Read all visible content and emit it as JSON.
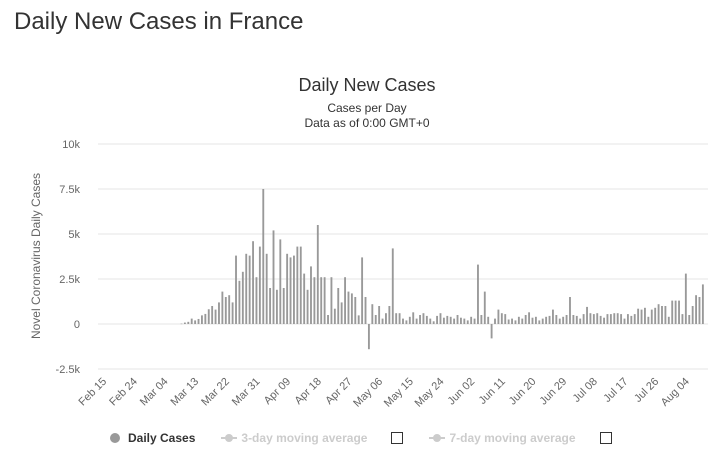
{
  "page_title": "Daily New Cases in France",
  "colors": {
    "bar": "#999999",
    "grid": "#e6e6e6",
    "text": "#333333",
    "axis_text": "#666666",
    "legend_inactive": "#cccccc"
  },
  "chart_data": {
    "type": "bar",
    "title": "Daily New Cases",
    "subtitle_1": "Cases per Day",
    "subtitle_2": "Data as of 0:00 GMT+0",
    "ylabel": "Novel Coronavirus Daily Cases",
    "xlabel": "",
    "ylim": [
      -2500,
      10000
    ],
    "yticks": [
      10000,
      7500,
      5000,
      2500,
      0,
      -2500
    ],
    "ytick_labels": [
      "10k",
      "7.5k",
      "5k",
      "2.5k",
      "0",
      "-2.5k"
    ],
    "start_date": "2020-02-15",
    "xtick_labels": [
      "Feb 15",
      "Feb 24",
      "Mar 04",
      "Mar 13",
      "Mar 22",
      "Mar 31",
      "Apr 09",
      "Apr 18",
      "Apr 27",
      "May 06",
      "May 15",
      "May 24",
      "Jun 02",
      "Jun 11",
      "Jun 20",
      "Jun 29",
      "Jul 08",
      "Jul 17",
      "Jul 26",
      "Aug 04"
    ],
    "legend": [
      "Daily Cases",
      "3-day moving average",
      "7-day moving average"
    ],
    "values": [
      0,
      0,
      0,
      0,
      0,
      0,
      0,
      0,
      0,
      0,
      0,
      0,
      0,
      0,
      0,
      0,
      0,
      0,
      0,
      0,
      0,
      0,
      0,
      20,
      80,
      120,
      300,
      200,
      280,
      480,
      560,
      820,
      1000,
      800,
      1200,
      1800,
      1500,
      1600,
      1200,
      3800,
      2400,
      2900,
      3900,
      3800,
      4600,
      2600,
      4300,
      7500,
      3900,
      2000,
      5200,
      1900,
      4700,
      2000,
      3900,
      3700,
      3800,
      4300,
      4300,
      2800,
      1900,
      3200,
      2600,
      5500,
      2600,
      2600,
      500,
      2600,
      850,
      2000,
      1200,
      2600,
      1800,
      1700,
      1500,
      480,
      3700,
      1500,
      -1400,
      1100,
      500,
      1000,
      300,
      600,
      1000,
      4200,
      600,
      600,
      300,
      200,
      400,
      650,
      300,
      500,
      600,
      450,
      300,
      150,
      450,
      600,
      350,
      450,
      400,
      300,
      500,
      350,
      300,
      200,
      400,
      300,
      3300,
      500,
      1800,
      400,
      -800,
      300,
      800,
      600,
      550,
      250,
      300,
      200,
      400,
      300,
      500,
      650,
      350,
      400,
      200,
      300,
      400,
      450,
      800,
      500,
      300,
      400,
      500,
      1500,
      500,
      450,
      300,
      550,
      950,
      600,
      550,
      600,
      450,
      350,
      550,
      550,
      600,
      600,
      550,
      300,
      550,
      450,
      550,
      850,
      800,
      900,
      400,
      800,
      900,
      1100,
      1000,
      1000,
      400,
      1300,
      1300,
      1300,
      550,
      2800,
      500,
      1000,
      1600,
      1500,
      2200
    ]
  }
}
